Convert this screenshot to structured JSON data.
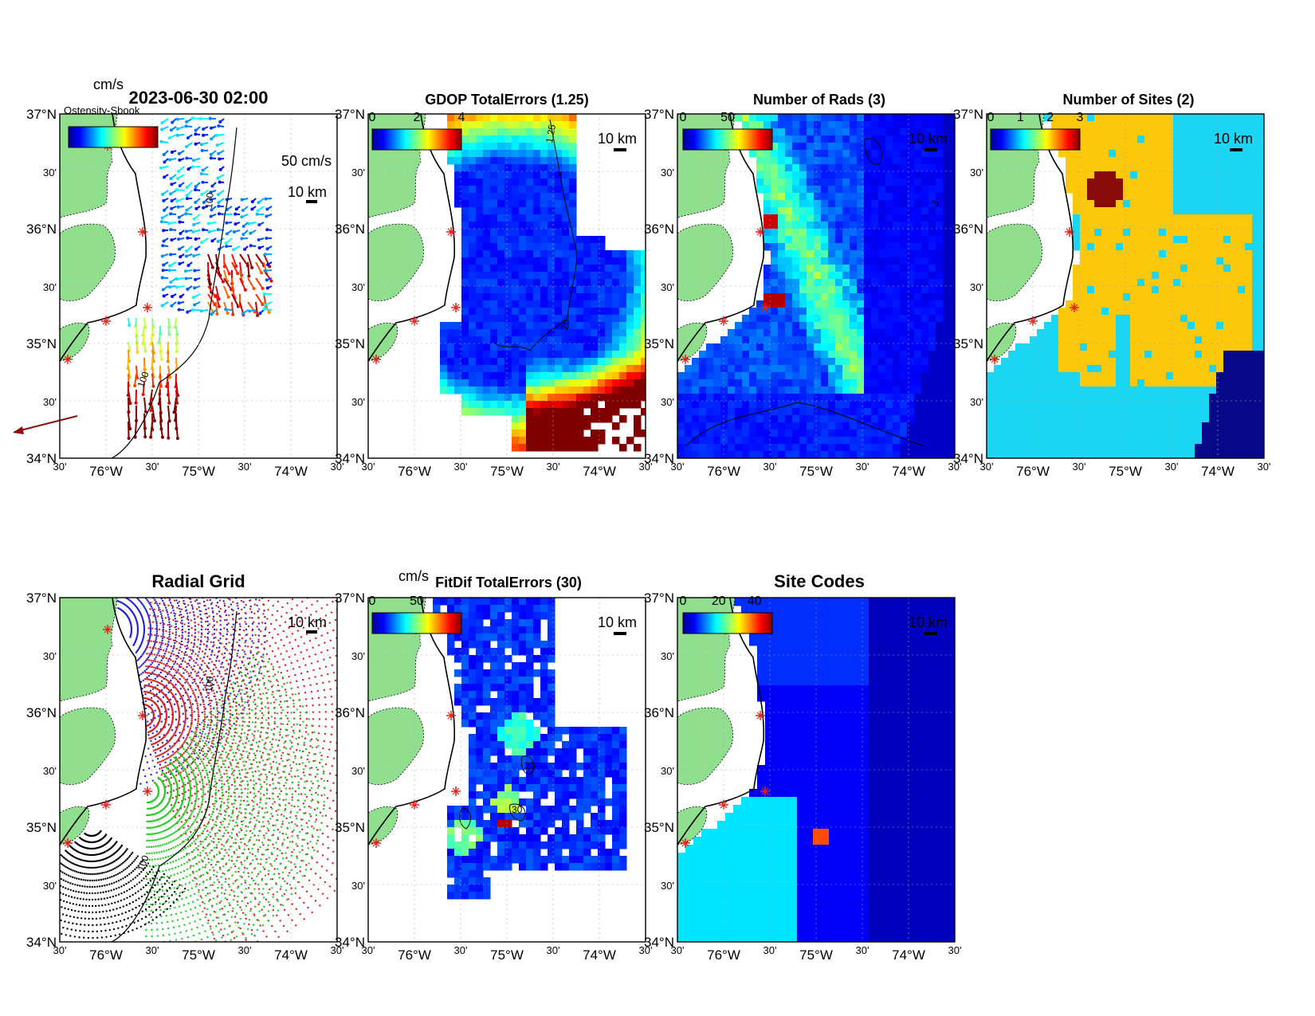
{
  "figure": {
    "timestamp": "2023-06-30 02:00",
    "legend_clutter": "Ostensity-Sbook",
    "unit_top": "cm/s",
    "unit_fitdif": "cm/s",
    "vector_scale_label": "50 cm/s",
    "scale_bar_label": "10 km"
  },
  "axes": {
    "y_labels": [
      "37°N",
      "30'",
      "36°N",
      "30'",
      "35°N",
      "30'",
      "34°N"
    ],
    "x_labels": [
      "30'",
      "76°W",
      "30'",
      "75°W",
      "30'",
      "74°W",
      "30'"
    ],
    "lat_range": [
      34,
      37
    ],
    "lon_range": [
      -76.5,
      -73.5
    ]
  },
  "isobaths": {
    "label_100": "100",
    "label_125": "1.25",
    "label_25": "25",
    "label_2": "2",
    "label_30": "30",
    "label_3": "3"
  },
  "panels": [
    {
      "key": "currents",
      "title": "2023-06-30 02:00",
      "colorbar_ticks": []
    },
    {
      "key": "gdop",
      "title": "GDOP TotalErrors (1.25)",
      "colorbar_ticks": [
        "0",
        "2",
        "4"
      ]
    },
    {
      "key": "rads",
      "title": "Number of Rads (3)",
      "colorbar_ticks": [
        "0",
        "50"
      ]
    },
    {
      "key": "sites",
      "title": "Number of Sites (2)",
      "colorbar_ticks": [
        "0",
        "1",
        "2",
        "3"
      ]
    },
    {
      "key": "radialgrid",
      "title": "Radial Grid",
      "colorbar_ticks": []
    },
    {
      "key": "fitdif",
      "title": "FitDif TotalErrors (30)",
      "colorbar_ticks": [
        "0",
        "50"
      ]
    },
    {
      "key": "sitecodes",
      "title": "Site Codes",
      "colorbar_ticks": [
        "0",
        "20",
        "40"
      ]
    }
  ],
  "colors": {
    "land": "#8fdf8f",
    "coast": "#000000",
    "site_marker": "#e0201a",
    "sites_ocean_blue": "#1ad6f2",
    "sites_ocean_yellow": "#fbc80a",
    "sites_ocean_dark": "#08088a",
    "grid_blue": "#2020e0",
    "grid_red": "#e02020",
    "grid_green": "#20d020",
    "grid_black": "#000000"
  }
}
